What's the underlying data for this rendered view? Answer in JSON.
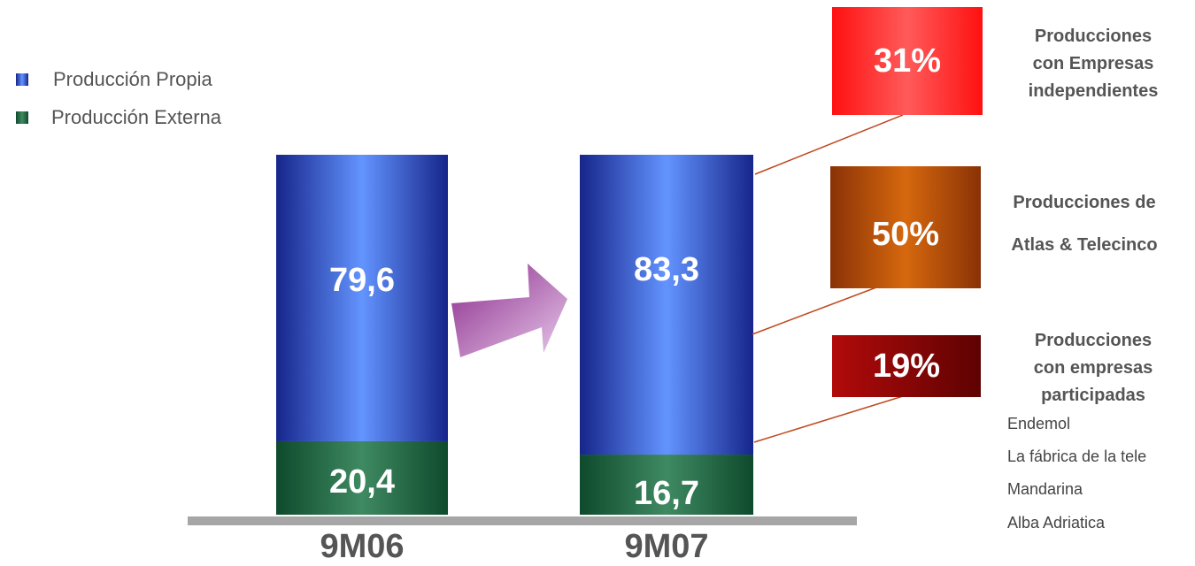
{
  "chart_data": {
    "type": "bar",
    "stacked": true,
    "categories": [
      "9M06",
      "9M07"
    ],
    "series": [
      {
        "name": "Producción Propia",
        "values": [
          79.6,
          83.3
        ],
        "labels": [
          "79,6",
          "83,3"
        ]
      },
      {
        "name": "Producción Externa",
        "values": [
          20.4,
          16.7
        ],
        "labels": [
          "20,4",
          "16,7"
        ]
      }
    ],
    "ylim": [
      0,
      100
    ],
    "grid": false,
    "legend": "top-left"
  },
  "legend": {
    "items": [
      {
        "label": "Producción Propia",
        "color": "#2b4fc4"
      },
      {
        "label": "Producción Externa",
        "color": "#1f6b42"
      }
    ]
  },
  "breakdown": [
    {
      "percent": "31%",
      "title_lines": [
        "Producciones",
        "con Empresas",
        "independientes"
      ],
      "color": "#ff2424"
    },
    {
      "percent": "50%",
      "title_lines": [
        "Producciones de",
        "Atlas & Telecinco"
      ],
      "color": "#b94d0e"
    },
    {
      "percent": "19%",
      "title_lines": [
        "Producciones",
        "con empresas",
        "participadas"
      ],
      "color": "#9e0a0a"
    }
  ],
  "companies": [
    "Endemol",
    "La fábrica de la tele",
    "Mandarina",
    "Alba Adriatica"
  ]
}
